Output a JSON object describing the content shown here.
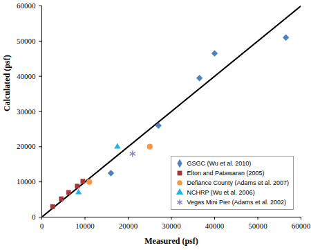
{
  "chart_data": {
    "type": "scatter",
    "xlabel": "Measured (psf)",
    "ylabel": "Calculated (psf)",
    "xlim": [
      0,
      60000
    ],
    "ylim": [
      0,
      60000
    ],
    "xticks": [
      0,
      10000,
      20000,
      30000,
      40000,
      50000,
      60000
    ],
    "yticks": [
      0,
      10000,
      20000,
      30000,
      40000,
      50000,
      60000
    ],
    "grid": false,
    "legend": "lower right",
    "series": [
      {
        "name": "GSGC (Wu et al. 2010)",
        "color": "#4f81bd",
        "marker": "diamond",
        "x": [
          16000,
          27000,
          36500,
          40000,
          56500
        ],
        "values": [
          12500,
          26000,
          39500,
          46500,
          51000
        ]
      },
      {
        "name": "Elton and Patawaran (2005)",
        "color": "#a5373a",
        "marker": "square",
        "x": [
          2500,
          4500,
          6200,
          8200,
          9500
        ],
        "values": [
          3000,
          5200,
          7000,
          8800,
          10200
        ]
      },
      {
        "name": "Defiance County (Adams et al. 2007)",
        "color": "#f79646",
        "marker": "circle",
        "x": [
          11000,
          25000
        ],
        "values": [
          10000,
          20000
        ]
      },
      {
        "name": "NCHRP (Wu et al. 2006)",
        "color": "#1fb4e6",
        "marker": "triangle",
        "x": [
          8500,
          17500
        ],
        "values": [
          7000,
          20000
        ]
      },
      {
        "name": "Vegas Mini Pier (Adams et al. 2002)",
        "color": "#8b7fc4",
        "marker": "asterisk",
        "x": [
          21000
        ],
        "values": [
          18000
        ]
      }
    ]
  }
}
